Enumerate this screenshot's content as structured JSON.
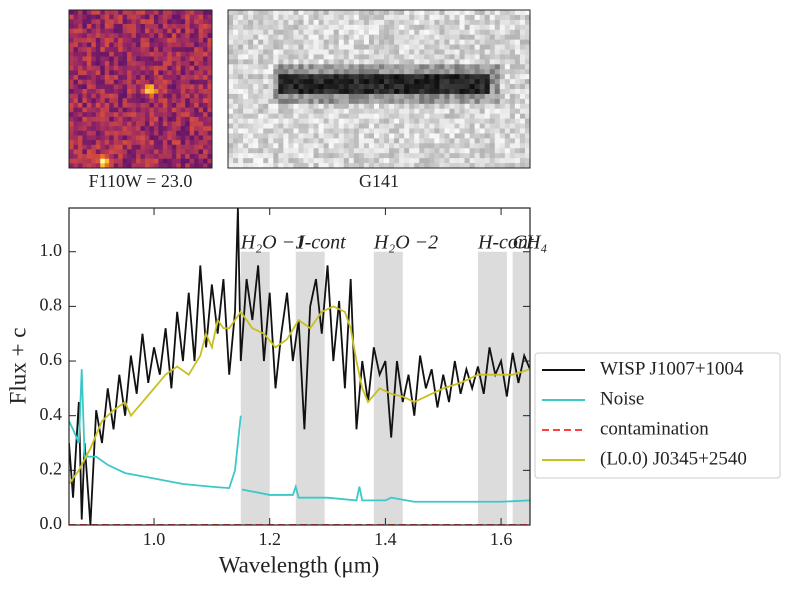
{
  "chart_data": [
    {
      "type": "image",
      "title": "F110W = 23.0",
      "colormap": "inferno"
    },
    {
      "type": "image",
      "title": "G141",
      "colormap": "gray"
    },
    {
      "type": "line",
      "xlabel": "Wavelength (μm)",
      "ylabel": "Flux + c",
      "xlim": [
        0.853,
        1.65
      ],
      "ylim": [
        0,
        1.16
      ],
      "xticks": [
        {
          "value": 1.0,
          "label": "1.0"
        },
        1.2,
        1.4,
        1.6
      ],
      "yticks": [
        {
          "value": 0,
          "label": "0.0"
        },
        0.2,
        0.4,
        0.6,
        0.8,
        {
          "value": 1.0,
          "label": "1.0"
        }
      ],
      "legend": "outside right",
      "bands": [
        {
          "label": "H₂O −1",
          "range": [
            1.15,
            1.2
          ],
          "top": 1.0
        },
        {
          "label": "J-cont",
          "range": [
            1.245,
            1.295
          ],
          "top": 1.0
        },
        {
          "label": "H₂O −2",
          "range": [
            1.38,
            1.43
          ],
          "top": 1.0
        },
        {
          "label": "H-cont",
          "range": [
            1.56,
            1.61
          ],
          "top": 1.0
        },
        {
          "label": "CH₄",
          "range": [
            1.62,
            1.65
          ],
          "top": 1.0
        }
      ],
      "series": [
        {
          "name": "WISP J1007+1004",
          "color": "#111111",
          "x": [
            0.853,
            0.86,
            0.87,
            0.875,
            0.88,
            0.89,
            0.9,
            0.91,
            0.92,
            0.93,
            0.94,
            0.95,
            0.96,
            0.97,
            0.98,
            0.99,
            1.0,
            1.01,
            1.02,
            1.03,
            1.04,
            1.05,
            1.06,
            1.07,
            1.08,
            1.09,
            1.1,
            1.11,
            1.12,
            1.13,
            1.14,
            1.145,
            1.15,
            1.16,
            1.17,
            1.18,
            1.19,
            1.2,
            1.21,
            1.22,
            1.23,
            1.24,
            1.25,
            1.26,
            1.27,
            1.28,
            1.29,
            1.3,
            1.31,
            1.32,
            1.33,
            1.34,
            1.35,
            1.36,
            1.37,
            1.38,
            1.39,
            1.4,
            1.41,
            1.42,
            1.43,
            1.44,
            1.45,
            1.46,
            1.47,
            1.48,
            1.49,
            1.5,
            1.51,
            1.52,
            1.53,
            1.54,
            1.55,
            1.56,
            1.57,
            1.58,
            1.59,
            1.6,
            1.61,
            1.62,
            1.63,
            1.64,
            1.65
          ],
          "values": [
            0.3,
            0.1,
            0.45,
            0.02,
            0.3,
            0.0,
            0.42,
            0.3,
            0.5,
            0.35,
            0.55,
            0.4,
            0.62,
            0.48,
            0.7,
            0.52,
            0.65,
            0.55,
            0.72,
            0.5,
            0.78,
            0.6,
            0.85,
            0.6,
            0.95,
            0.65,
            0.88,
            0.7,
            0.9,
            0.55,
            0.78,
            1.16,
            0.6,
            0.9,
            0.75,
            0.95,
            0.6,
            0.85,
            0.5,
            0.7,
            0.85,
            0.6,
            0.75,
            0.35,
            0.8,
            0.9,
            0.7,
            0.95,
            0.6,
            0.82,
            0.5,
            0.9,
            0.35,
            0.6,
            0.45,
            0.65,
            0.55,
            0.6,
            0.32,
            0.6,
            0.45,
            0.55,
            0.4,
            0.62,
            0.5,
            0.57,
            0.43,
            0.55,
            0.45,
            0.6,
            0.48,
            0.57,
            0.5,
            0.58,
            0.48,
            0.65,
            0.55,
            0.6,
            0.47,
            0.63,
            0.52,
            0.62,
            0.57
          ]
        },
        {
          "name": "Noise",
          "color": "#3cc8c8",
          "x": [
            0.853,
            0.86,
            0.87,
            0.875,
            0.88,
            0.9,
            0.92,
            0.95,
            1.0,
            1.05,
            1.1,
            1.13,
            1.14,
            1.15,
            1.151,
            1.152,
            1.2,
            1.24,
            1.245,
            1.25,
            1.3,
            1.35,
            1.355,
            1.36,
            1.4,
            1.41,
            1.45,
            1.5,
            1.6,
            1.65
          ],
          "values": [
            0.38,
            0.35,
            0.3,
            0.57,
            0.25,
            0.25,
            0.22,
            0.19,
            0.17,
            0.15,
            0.14,
            0.135,
            0.2,
            0.4,
            null,
            0.13,
            0.11,
            0.11,
            0.14,
            0.1,
            0.1,
            0.09,
            0.14,
            0.09,
            0.09,
            0.1,
            0.085,
            0.085,
            0.085,
            0.09
          ]
        },
        {
          "name": "contamination",
          "color": "#ff4040",
          "dash": true,
          "x": [
            0.853,
            1.65
          ],
          "values": [
            0,
            0
          ]
        },
        {
          "name": "(L0.0) J0345+2540",
          "color": "#c8c020",
          "x": [
            0.853,
            0.87,
            0.89,
            0.91,
            0.93,
            0.95,
            0.96,
            0.98,
            1.0,
            1.02,
            1.04,
            1.06,
            1.08,
            1.09,
            1.1,
            1.11,
            1.12,
            1.13,
            1.15,
            1.17,
            1.19,
            1.21,
            1.23,
            1.25,
            1.27,
            1.29,
            1.31,
            1.33,
            1.34,
            1.35,
            1.36,
            1.37,
            1.39,
            1.41,
            1.43,
            1.45,
            1.47,
            1.5,
            1.53,
            1.56,
            1.59,
            1.62,
            1.65
          ],
          "values": [
            0.15,
            0.2,
            0.28,
            0.38,
            0.42,
            0.45,
            0.4,
            0.45,
            0.5,
            0.55,
            0.58,
            0.55,
            0.62,
            0.7,
            0.65,
            0.75,
            0.72,
            0.72,
            0.78,
            0.72,
            0.7,
            0.65,
            0.68,
            0.75,
            0.72,
            0.78,
            0.8,
            0.78,
            0.72,
            0.6,
            0.5,
            0.45,
            0.5,
            0.48,
            0.47,
            0.45,
            0.47,
            0.5,
            0.52,
            0.55,
            0.55,
            0.55,
            0.57
          ]
        }
      ]
    }
  ]
}
